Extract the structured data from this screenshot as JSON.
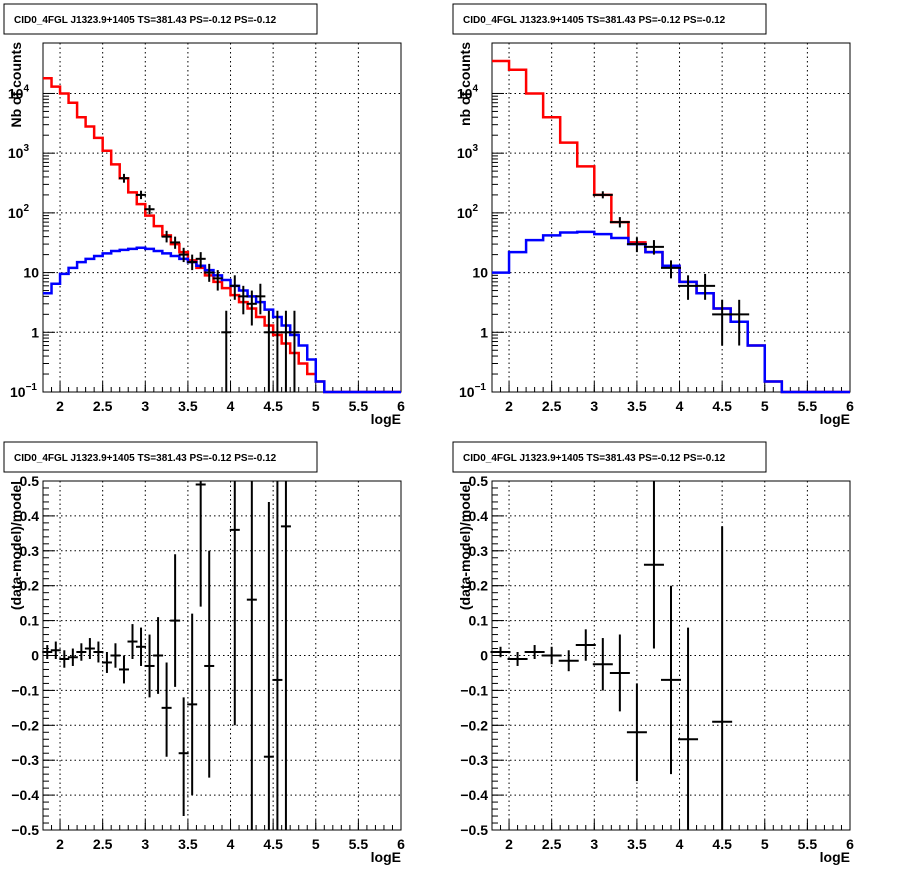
{
  "chart_data": [
    {
      "type": "line",
      "title": "CID0_4FGL J1323.9+1405 TS=381.43 PS=-0.12 PS=-0.12",
      "xlabel": "logE",
      "ylabel": "Nb of counts",
      "xlim": [
        1.8,
        6.0
      ],
      "ylim": [
        0.1,
        70000
      ],
      "yscale": "log",
      "grid": true,
      "x_ticks": [
        "2",
        "2.5",
        "3",
        "3.5",
        "4",
        "4.5",
        "5",
        "5.5",
        "6"
      ],
      "y_ticks": [
        {
          "base": "10",
          "exp": "−1"
        },
        {
          "base": "1",
          "exp": ""
        },
        {
          "base": "10",
          "exp": ""
        },
        {
          "base": "10",
          "exp": "2"
        },
        {
          "base": "10",
          "exp": "3"
        },
        {
          "base": "10",
          "exp": "4"
        }
      ],
      "bin_edges": [
        1.8,
        1.9,
        2.0,
        2.1,
        2.2,
        2.3,
        2.4,
        2.5,
        2.6,
        2.7,
        2.8,
        2.9,
        3.0,
        3.1,
        3.2,
        3.3,
        3.4,
        3.5,
        3.6,
        3.7,
        3.8,
        3.9,
        4.0,
        4.1,
        4.2,
        4.3,
        4.4,
        4.5,
        4.6,
        4.7,
        4.8,
        4.9,
        5.0,
        5.1,
        5.2,
        5.3,
        5.4,
        5.5,
        5.6,
        5.7,
        5.8,
        5.9,
        6.0
      ],
      "series": [
        {
          "role": "total-model",
          "color": "#ff0000",
          "values": [
            18000,
            13000,
            10000,
            7000,
            4000,
            2800,
            1800,
            1100,
            650,
            380,
            220,
            140,
            90,
            60,
            42,
            30,
            22,
            16,
            12,
            9,
            7,
            5.5,
            4.2,
            3.2,
            2.5,
            1.8,
            1.3,
            0.9,
            0.65,
            0.45,
            0.3,
            0.2,
            0.15,
            0.1,
            0.1,
            0.1,
            0.1,
            0.1,
            0.1,
            0.1,
            0.1,
            0.1
          ]
        },
        {
          "role": "source-model",
          "color": "#0000ff",
          "values": [
            4.5,
            6.5,
            9.5,
            12,
            15,
            17,
            19,
            21,
            23,
            24,
            25,
            26,
            25,
            23,
            21,
            19,
            17,
            15,
            13,
            11,
            9,
            7.5,
            6,
            5,
            4,
            3.2,
            2.4,
            1.8,
            1.3,
            0.9,
            0.6,
            0.35,
            0.15,
            0.1,
            0.1,
            0.1,
            0.1,
            0.1,
            0.1,
            0.1,
            0.1,
            0.1
          ]
        },
        {
          "role": "data",
          "color": "#000000",
          "points": [
            {
              "x": 2.75,
              "y": 380,
              "lo": 320,
              "hi": 450
            },
            {
              "x": 2.95,
              "y": 200,
              "lo": 170,
              "hi": 235
            },
            {
              "x": 3.05,
              "y": 115,
              "lo": 95,
              "hi": 135
            },
            {
              "x": 3.25,
              "y": 40,
              "lo": 32,
              "hi": 50
            },
            {
              "x": 3.35,
              "y": 32,
              "lo": 25,
              "hi": 40
            },
            {
              "x": 3.45,
              "y": 20,
              "lo": 15,
              "hi": 26
            },
            {
              "x": 3.55,
              "y": 15,
              "lo": 11,
              "hi": 20
            },
            {
              "x": 3.65,
              "y": 17,
              "lo": 12,
              "hi": 22
            },
            {
              "x": 3.75,
              "y": 10,
              "lo": 7,
              "hi": 14
            },
            {
              "x": 3.85,
              "y": 8,
              "lo": 5,
              "hi": 11
            },
            {
              "x": 3.95,
              "y": 1,
              "lo": 0.1,
              "hi": 2.3
            },
            {
              "x": 4.05,
              "y": 6,
              "lo": 3.5,
              "hi": 9
            },
            {
              "x": 4.15,
              "y": 4,
              "lo": 2,
              "hi": 6
            },
            {
              "x": 4.25,
              "y": 3,
              "lo": 1.3,
              "hi": 5
            },
            {
              "x": 4.35,
              "y": 4,
              "lo": 2,
              "hi": 6.5
            },
            {
              "x": 4.45,
              "y": 1,
              "lo": 0.1,
              "hi": 2.3
            },
            {
              "x": 4.55,
              "y": 1,
              "lo": 0.1,
              "hi": 2.3
            },
            {
              "x": 4.65,
              "y": 1,
              "lo": 0.1,
              "hi": 2.3
            },
            {
              "x": 4.75,
              "y": 1,
              "lo": 0.1,
              "hi": 2.3
            }
          ]
        }
      ]
    },
    {
      "type": "line",
      "title": "CID0_4FGL J1323.9+1405 TS=381.43 PS=-0.12 PS=-0.12",
      "xlabel": "logE",
      "ylabel": "nb of counts",
      "xlim": [
        1.8,
        6.0
      ],
      "ylim": [
        0.1,
        70000
      ],
      "yscale": "log",
      "grid": true,
      "x_ticks": [
        "2",
        "2.5",
        "3",
        "3.5",
        "4",
        "4.5",
        "5",
        "5.5",
        "6"
      ],
      "y_ticks": [
        {
          "base": "10",
          "exp": "−1"
        },
        {
          "base": "1",
          "exp": ""
        },
        {
          "base": "10",
          "exp": ""
        },
        {
          "base": "10",
          "exp": "2"
        },
        {
          "base": "10",
          "exp": "3"
        },
        {
          "base": "10",
          "exp": "4"
        }
      ],
      "bin_edges": [
        1.8,
        2.0,
        2.2,
        2.4,
        2.6,
        2.8,
        3.0,
        3.2,
        3.4,
        3.6,
        3.8,
        4.0,
        4.2,
        4.4,
        4.6,
        4.8,
        5.0,
        5.2,
        5.4,
        5.6,
        5.8,
        6.0
      ],
      "series": [
        {
          "role": "total-model",
          "color": "#ff0000",
          "values": [
            35000,
            25000,
            10000,
            4000,
            1500,
            600,
            200,
            70,
            32,
            22,
            13,
            7,
            4.5,
            2.5,
            1.5,
            0.6,
            0.15,
            0.1,
            0.1,
            0.1,
            0.1
          ]
        },
        {
          "role": "source-model",
          "color": "#0000ff",
          "values": [
            10,
            22,
            35,
            42,
            47,
            48,
            44,
            38,
            30,
            22,
            13,
            7,
            4.5,
            2.5,
            1.5,
            0.6,
            0.15,
            0.1,
            0.1,
            0.1,
            0.1
          ]
        },
        {
          "role": "data",
          "color": "#000000",
          "points": [
            {
              "x": 3.1,
              "y": 200,
              "lo": 175,
              "hi": 230
            },
            {
              "x": 3.3,
              "y": 70,
              "lo": 57,
              "hi": 85
            },
            {
              "x": 3.5,
              "y": 30,
              "lo": 22,
              "hi": 39
            },
            {
              "x": 3.7,
              "y": 27,
              "lo": 20,
              "hi": 35
            },
            {
              "x": 3.9,
              "y": 12,
              "lo": 8,
              "hi": 16
            },
            {
              "x": 4.1,
              "y": 6,
              "lo": 3.5,
              "hi": 9
            },
            {
              "x": 4.3,
              "y": 6,
              "lo": 3.5,
              "hi": 9.5
            },
            {
              "x": 4.5,
              "y": 2,
              "lo": 0.6,
              "hi": 3.5
            },
            {
              "x": 4.7,
              "y": 2,
              "lo": 0.6,
              "hi": 3.5
            }
          ]
        }
      ]
    },
    {
      "type": "scatter",
      "title": "CID0_4FGL J1323.9+1405 TS=381.43 PS=-0.12 PS=-0.12",
      "xlabel": "logE",
      "ylabel": "(data-model)/model",
      "xlim": [
        1.8,
        6.0
      ],
      "ylim": [
        -0.5,
        0.5
      ],
      "grid": true,
      "x_ticks": [
        "2",
        "2.5",
        "3",
        "3.5",
        "4",
        "4.5",
        "5",
        "5.5",
        "6"
      ],
      "y_ticks": [
        "−0.5",
        "−0.4",
        "−0.3",
        "−0.2",
        "−0.1",
        "0",
        "0.1",
        "0.2",
        "0.3",
        "0.4",
        "0.5"
      ],
      "series": [
        {
          "role": "residuals",
          "color": "#000000",
          "points": [
            {
              "x": 1.85,
              "y": 0.01,
              "lo": -0.01,
              "hi": 0.03
            },
            {
              "x": 1.95,
              "y": 0.015,
              "lo": -0.01,
              "hi": 0.04
            },
            {
              "x": 2.05,
              "y": -0.01,
              "lo": -0.035,
              "hi": 0.015
            },
            {
              "x": 2.15,
              "y": -0.005,
              "lo": -0.03,
              "hi": 0.02
            },
            {
              "x": 2.25,
              "y": 0.01,
              "lo": -0.015,
              "hi": 0.035
            },
            {
              "x": 2.35,
              "y": 0.02,
              "lo": -0.01,
              "hi": 0.05
            },
            {
              "x": 2.45,
              "y": 0.01,
              "lo": -0.02,
              "hi": 0.04
            },
            {
              "x": 2.55,
              "y": -0.02,
              "lo": -0.05,
              "hi": 0.01
            },
            {
              "x": 2.65,
              "y": 0.0,
              "lo": -0.035,
              "hi": 0.035
            },
            {
              "x": 2.75,
              "y": -0.04,
              "lo": -0.08,
              "hi": 0.0
            },
            {
              "x": 2.85,
              "y": 0.04,
              "lo": -0.01,
              "hi": 0.09
            },
            {
              "x": 2.95,
              "y": 0.025,
              "lo": -0.03,
              "hi": 0.08
            },
            {
              "x": 3.05,
              "y": -0.03,
              "lo": -0.12,
              "hi": 0.06
            },
            {
              "x": 3.15,
              "y": 0.0,
              "lo": -0.11,
              "hi": 0.11
            },
            {
              "x": 3.25,
              "y": -0.15,
              "lo": -0.29,
              "hi": -0.02
            },
            {
              "x": 3.35,
              "y": 0.1,
              "lo": -0.09,
              "hi": 0.29
            },
            {
              "x": 3.45,
              "y": -0.28,
              "lo": -0.46,
              "hi": -0.12
            },
            {
              "x": 3.55,
              "y": -0.14,
              "lo": -0.4,
              "hi": 0.12
            },
            {
              "x": 3.65,
              "y": 0.49,
              "lo": 0.14,
              "hi": 0.5
            },
            {
              "x": 3.75,
              "y": -0.03,
              "lo": -0.35,
              "hi": 0.3
            },
            {
              "x": 4.05,
              "y": 0.36,
              "lo": -0.2,
              "hi": 0.5
            },
            {
              "x": 4.25,
              "y": 0.16,
              "lo": -0.5,
              "hi": 0.5
            },
            {
              "x": 4.45,
              "y": -0.29,
              "lo": -0.5,
              "hi": 0.44
            },
            {
              "x": 4.55,
              "y": -0.07,
              "lo": -0.5,
              "hi": 0.5
            },
            {
              "x": 4.65,
              "y": 0.37,
              "lo": -0.5,
              "hi": 0.5
            }
          ]
        }
      ]
    },
    {
      "type": "scatter",
      "title": "CID0_4FGL J1323.9+1405 TS=381.43 PS=-0.12 PS=-0.12",
      "xlabel": "logE",
      "ylabel": "(data-model)/model",
      "xlim": [
        1.8,
        6.0
      ],
      "ylim": [
        -0.5,
        0.5
      ],
      "grid": true,
      "x_ticks": [
        "2",
        "2.5",
        "3",
        "3.5",
        "4",
        "4.5",
        "5",
        "5.5",
        "6"
      ],
      "y_ticks": [
        "−0.5",
        "−0.4",
        "−0.3",
        "−0.2",
        "−0.1",
        "0",
        "0.1",
        "0.2",
        "0.3",
        "0.4",
        "0.5"
      ],
      "series": [
        {
          "role": "residuals",
          "color": "#000000",
          "points": [
            {
              "x": 1.9,
              "y": 0.01,
              "lo": -0.005,
              "hi": 0.025
            },
            {
              "x": 2.1,
              "y": -0.01,
              "lo": -0.03,
              "hi": 0.01
            },
            {
              "x": 2.3,
              "y": 0.01,
              "lo": -0.01,
              "hi": 0.03
            },
            {
              "x": 2.5,
              "y": 0.0,
              "lo": -0.025,
              "hi": 0.025
            },
            {
              "x": 2.7,
              "y": -0.015,
              "lo": -0.045,
              "hi": 0.015
            },
            {
              "x": 2.9,
              "y": 0.03,
              "lo": -0.015,
              "hi": 0.075
            },
            {
              "x": 3.1,
              "y": -0.025,
              "lo": -0.1,
              "hi": 0.05
            },
            {
              "x": 3.3,
              "y": -0.05,
              "lo": -0.16,
              "hi": 0.06
            },
            {
              "x": 3.5,
              "y": -0.22,
              "lo": -0.36,
              "hi": -0.08
            },
            {
              "x": 3.7,
              "y": 0.26,
              "lo": 0.02,
              "hi": 0.5
            },
            {
              "x": 3.9,
              "y": -0.07,
              "lo": -0.34,
              "hi": 0.2
            },
            {
              "x": 4.1,
              "y": -0.24,
              "lo": -0.5,
              "hi": 0.08
            },
            {
              "x": 4.5,
              "y": -0.19,
              "lo": -0.5,
              "hi": 0.37
            }
          ]
        }
      ]
    }
  ]
}
